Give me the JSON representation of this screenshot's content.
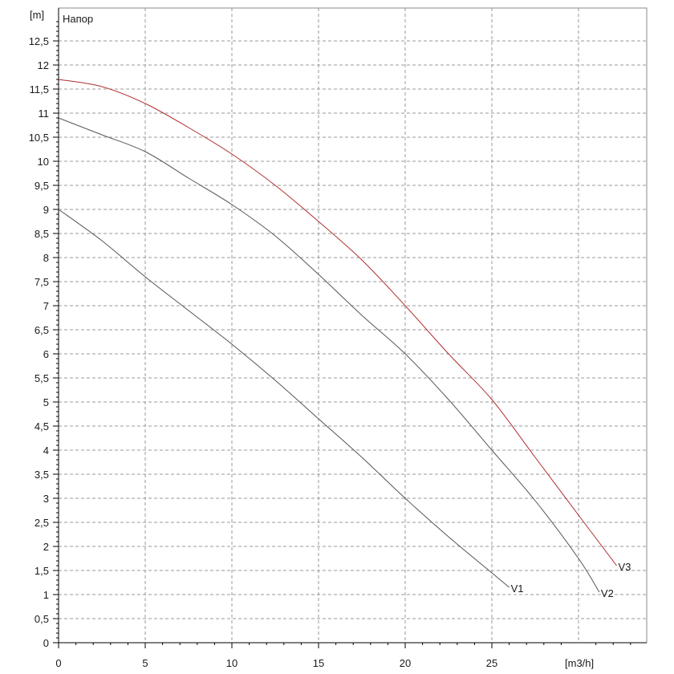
{
  "chart_data": {
    "type": "line",
    "title": "Напор",
    "ylabel": "[m]",
    "xlabel": "[m3/h]",
    "xlim": [
      0,
      34
    ],
    "ylim": [
      0,
      13
    ],
    "grid": true,
    "x_ticks": [
      0,
      5,
      10,
      15,
      20,
      25
    ],
    "x_tick_labels": [
      "0",
      "5",
      "10",
      "15",
      "20",
      "25"
    ],
    "y_ticks": [
      0,
      0.5,
      1,
      1.5,
      2,
      2.5,
      3,
      3.5,
      4,
      4.5,
      5,
      5.5,
      6,
      6.5,
      7,
      7.5,
      8,
      8.5,
      9,
      9.5,
      10,
      10.5,
      11,
      11.5,
      12,
      12.5
    ],
    "y_tick_labels": [
      "0",
      "0,5",
      "1",
      "1,5",
      "2",
      "2,5",
      "3",
      "3,5",
      "4",
      "4,5",
      "5",
      "5,5",
      "6",
      "6,5",
      "7",
      "7,5",
      "8",
      "8,5",
      "9",
      "9,5",
      "10",
      "10,5",
      "11",
      "11,5",
      "12",
      "12,5"
    ],
    "series": [
      {
        "name": "V1",
        "color": "#555555",
        "x": [
          0,
          2.5,
          5,
          7.5,
          10,
          12.5,
          15,
          17.5,
          20,
          22.5,
          25,
          26
        ],
        "y": [
          9.0,
          8.35,
          7.6,
          6.9,
          6.2,
          5.45,
          4.65,
          3.85,
          3.0,
          2.2,
          1.45,
          1.15
        ]
      },
      {
        "name": "V2",
        "color": "#555555",
        "x": [
          0,
          2.5,
          5,
          7.5,
          10,
          12.5,
          15,
          17.5,
          20,
          22.5,
          25,
          27.5,
          30,
          31.2
        ],
        "y": [
          10.9,
          10.55,
          10.2,
          9.65,
          9.1,
          8.45,
          7.65,
          6.8,
          6.0,
          5.05,
          4.0,
          2.95,
          1.75,
          1.05
        ]
      },
      {
        "name": "V3",
        "color": "#b03030",
        "x": [
          0,
          2.5,
          5,
          7.5,
          10,
          12.5,
          15,
          17.5,
          20,
          22.5,
          25,
          27.5,
          30,
          32.2
        ],
        "y": [
          11.7,
          11.55,
          11.2,
          10.7,
          10.15,
          9.5,
          8.75,
          7.95,
          7.0,
          6.0,
          5.05,
          3.85,
          2.65,
          1.6
        ]
      }
    ]
  }
}
